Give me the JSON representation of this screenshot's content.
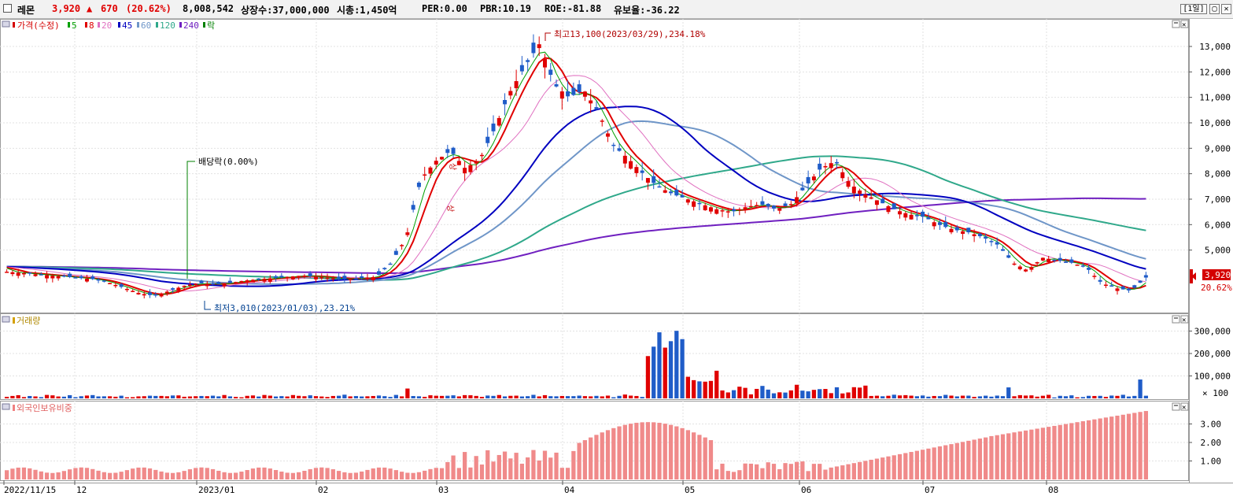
{
  "header": {
    "stock_name": "레몬",
    "price": "3,920",
    "change_arrow": "▲",
    "change": "670",
    "change_pct": "(20.62%)",
    "volume": "8,008,542",
    "shares": "상장수:37,000,000",
    "market_cap": "시총:1,450억",
    "per": "PER:0.00",
    "pbr": "PBR:10.19",
    "roe": "ROE:-81.88",
    "float_ratio": "유보율:-36.22",
    "period_button": "[1일]",
    "restore_button": "▢",
    "close_button": "✕"
  },
  "price_panel": {
    "legend": [
      {
        "label": "가격(수정)",
        "color": "#d40000"
      },
      {
        "label": "5",
        "color": "#00a000"
      },
      {
        "label": "8",
        "color": "#e00000"
      },
      {
        "label": "20",
        "color": "#e070c0"
      },
      {
        "label": "45",
        "color": "#0000c0"
      },
      {
        "label": "60",
        "color": "#6f96c8"
      },
      {
        "label": "120",
        "color": "#2fa88a"
      },
      {
        "label": "240",
        "color": "#7020c0"
      },
      {
        "label": "락",
        "color": "#008000"
      }
    ],
    "y_ticks": [
      "13,000",
      "12,000",
      "11,000",
      "10,000",
      "9,000",
      "8,000",
      "7,000",
      "6,000",
      "5,000"
    ],
    "high_annotation": "최고13,100(2023/03/29),234.18%",
    "low_annotation": "최저3,010(2023/01/03),23.21%",
    "dividend_annotation": "배당락(0.00%)",
    "current_price_label": "3,920",
    "current_change_label": "20.62%",
    "rise_markers": [
      "상",
      "상"
    ]
  },
  "volume_panel": {
    "title": "거래량",
    "y_ticks": [
      "300,000",
      "200,000",
      "100,000"
    ],
    "unit_label": "× 100"
  },
  "foreign_panel": {
    "title": "외국인보유비중",
    "y_ticks": [
      "3.00",
      "2.00",
      "1.00"
    ]
  },
  "x_axis": {
    "labels": [
      "2022/11/15",
      "12",
      "2023/01",
      "02",
      "03",
      "04",
      "05",
      "06",
      "07",
      "08"
    ]
  },
  "chart_data": {
    "type": "candlestick",
    "x_labels": [
      "2022/11/15",
      "12",
      "2023/01",
      "02",
      "03",
      "04",
      "05",
      "06",
      "07",
      "08"
    ],
    "price_range": [
      3000,
      13500
    ],
    "approx_close_series": [
      4150,
      4100,
      4050,
      4000,
      3950,
      3900,
      3850,
      3700,
      3500,
      3300,
      3200,
      3400,
      3600,
      3700,
      3650,
      3700,
      3800,
      3850,
      3900,
      3950,
      4000,
      3950,
      3900,
      3850,
      3900,
      3950,
      4500,
      5500,
      7800,
      8500,
      8900,
      8200,
      8600,
      9800,
      11200,
      12200,
      13100,
      11500,
      11000,
      11300,
      10400,
      9100,
      8600,
      8000,
      7500,
      7200,
      7000,
      6800,
      6600,
      6500,
      6700,
      6800,
      6600,
      6800,
      7500,
      8200,
      8500,
      7600,
      7200,
      6900,
      6600,
      6400,
      6300,
      6000,
      5800,
      5700,
      5500,
      5200,
      4500,
      4200,
      4700,
      4600,
      4500,
      4300,
      3700,
      3500,
      3400,
      3920
    ],
    "high": {
      "value": 13100,
      "date": "2023/03/29",
      "pct": "234.18%"
    },
    "low": {
      "value": 3010,
      "date": "2023/01/03",
      "pct": "23.21%"
    },
    "volume_range": [
      0,
      350000
    ],
    "foreign_ratio_range": [
      0,
      3.8
    ]
  }
}
